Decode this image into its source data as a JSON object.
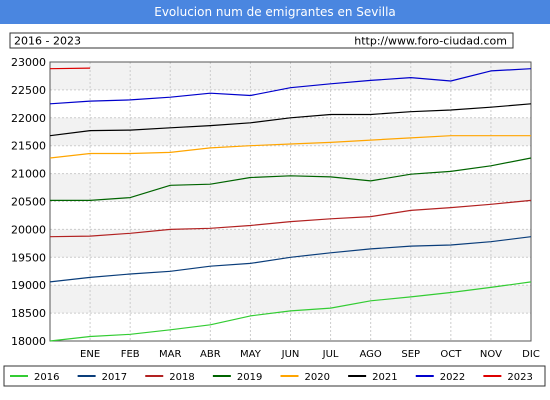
{
  "chart_data": {
    "type": "line",
    "title": "Evolucion num de emigrantes en Sevilla",
    "period_label": "2016 - 2023",
    "source_url": "http://www.foro-ciudad.com",
    "xlabel": "",
    "ylabel": "",
    "ylim": [
      18000,
      23000
    ],
    "grid": true,
    "legend_position": "bottom",
    "yticks": [
      18000,
      18500,
      19000,
      19500,
      20000,
      20500,
      21000,
      21500,
      22000,
      22500,
      23000
    ],
    "categories": [
      "",
      "ENE",
      "FEB",
      "MAR",
      "ABR",
      "MAY",
      "JUN",
      "JUL",
      "AGO",
      "SEP",
      "OCT",
      "NOV",
      "DIC"
    ],
    "series": [
      {
        "name": "2016",
        "color": "#33cc33",
        "values": [
          18000,
          18080,
          18120,
          18200,
          18290,
          18450,
          18540,
          18590,
          18720,
          18790,
          18870,
          18960,
          19060
        ]
      },
      {
        "name": "2017",
        "color": "#0a3d7a",
        "values": [
          19060,
          19140,
          19200,
          19250,
          19340,
          19390,
          19500,
          19580,
          19650,
          19700,
          19720,
          19780,
          19870
        ]
      },
      {
        "name": "2018",
        "color": "#b22222",
        "values": [
          19870,
          19880,
          19930,
          20000,
          20020,
          20070,
          20140,
          20190,
          20230,
          20340,
          20390,
          20450,
          20520
        ]
      },
      {
        "name": "2019",
        "color": "#006400",
        "values": [
          20520,
          20520,
          20570,
          20790,
          20810,
          20930,
          20960,
          20940,
          20870,
          20990,
          21040,
          21140,
          21280
        ]
      },
      {
        "name": "2020",
        "color": "#ffa500",
        "values": [
          21280,
          21360,
          21360,
          21380,
          21460,
          21500,
          21530,
          21560,
          21600,
          21640,
          21680,
          21680,
          21680
        ]
      },
      {
        "name": "2021",
        "color": "#000000",
        "values": [
          21680,
          21770,
          21780,
          21820,
          21860,
          21910,
          22000,
          22060,
          22060,
          22110,
          22140,
          22190,
          22250
        ]
      },
      {
        "name": "2022",
        "color": "#0000cc",
        "values": [
          22250,
          22300,
          22320,
          22370,
          22440,
          22400,
          22540,
          22610,
          22670,
          22720,
          22660,
          22840,
          22880
        ]
      },
      {
        "name": "2023",
        "color": "#dd0000",
        "values": [
          22880,
          22890,
          null,
          null,
          null,
          null,
          null,
          null,
          null,
          null,
          null,
          null,
          null
        ]
      }
    ]
  }
}
